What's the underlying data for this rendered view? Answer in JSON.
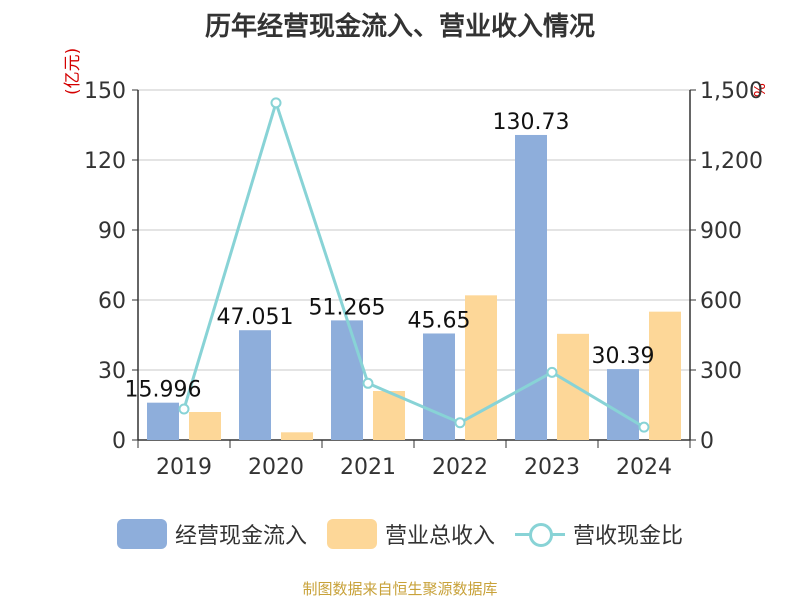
{
  "title": "历年经营现金流入、营业收入情况",
  "source": "制图数据来自恒生聚源数据库",
  "left_unit": "(亿元)",
  "right_unit": "%",
  "colors": {
    "cash_inflow": "#8eaedb",
    "revenue": "#fdd798",
    "ratio": "#88d3d6"
  },
  "legend": [
    "经营现金流入",
    "营业总收入",
    "营收现金比"
  ],
  "chart_data": {
    "type": "bar",
    "categories": [
      "2019",
      "2020",
      "2021",
      "2022",
      "2023",
      "2024"
    ],
    "series": [
      {
        "name": "经营现金流入",
        "type": "bar",
        "axis": "left",
        "values": [
          15.996,
          47.051,
          51.265,
          45.65,
          130.73,
          30.39
        ],
        "labels": [
          "15.996",
          "47.051",
          "51.265",
          "45.65",
          "130.73",
          "30.39"
        ]
      },
      {
        "name": "营业总收入",
        "type": "bar",
        "axis": "left",
        "values": [
          12,
          3.3,
          21,
          62,
          45.5,
          55
        ]
      },
      {
        "name": "营收现金比",
        "type": "line",
        "axis": "right",
        "values": [
          133,
          1445,
          243,
          74,
          290,
          55
        ]
      }
    ],
    "y_left": {
      "range": [
        0,
        150
      ],
      "ticks": [
        "0",
        "30",
        "60",
        "90",
        "120",
        "150"
      ],
      "tick_values": [
        0,
        30,
        60,
        90,
        120,
        150
      ]
    },
    "y_right": {
      "range": [
        0,
        1500
      ],
      "ticks": [
        "0",
        "300",
        "600",
        "900",
        "1,200",
        "1,500"
      ],
      "tick_values": [
        0,
        300,
        600,
        900,
        1200,
        1500
      ]
    },
    "grid": true,
    "legend_position": "bottom"
  }
}
